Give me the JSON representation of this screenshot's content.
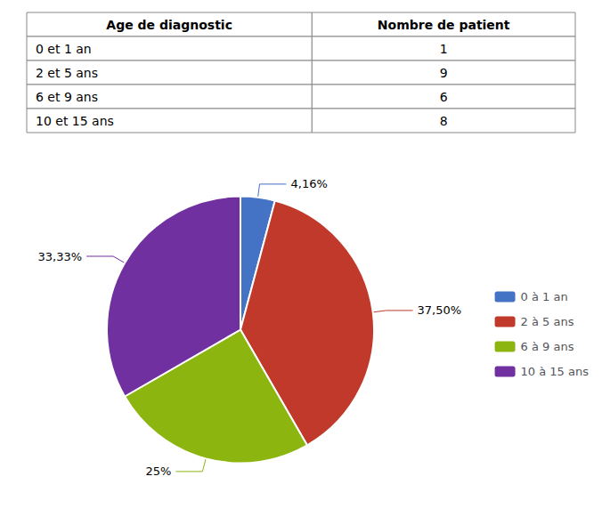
{
  "chart_data": [
    {
      "type": "table",
      "headers": [
        "Age de diagnostic",
        "Nombre de patient"
      ],
      "rows": [
        [
          "0 et 1 an",
          1
        ],
        [
          "2 et 5 ans",
          9
        ],
        [
          "6 et 9 ans",
          6
        ],
        [
          "10 et 15 ans",
          8
        ]
      ]
    },
    {
      "type": "pie",
      "categories": [
        "0 à 1 an",
        "2 à 5 ans",
        "6 à 9 ans",
        "10 à 15 ans"
      ],
      "values": [
        4.16,
        37.5,
        25,
        33.33
      ],
      "value_labels": [
        "4,16%",
        "37,50%",
        "25%",
        "33,33%"
      ],
      "colors": [
        "#4472C4",
        "#C0392B",
        "#8DB510",
        "#7030A0"
      ],
      "data_labels": true,
      "legend": "right"
    }
  ]
}
